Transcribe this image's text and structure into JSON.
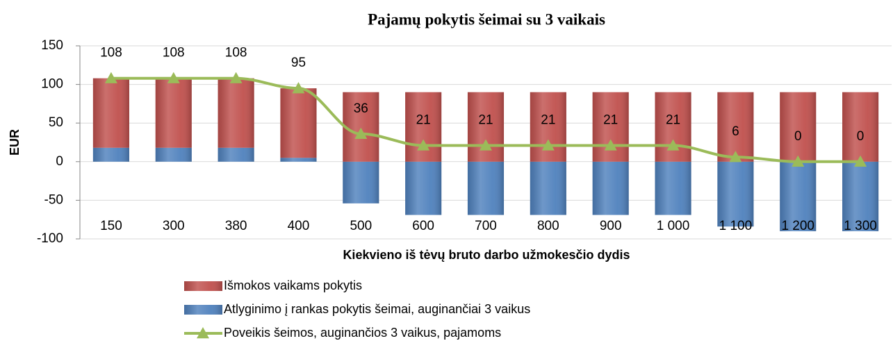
{
  "chart_data": {
    "type": "bar",
    "stacked": true,
    "title": "Pajamų pokytis šeimai su 3 vaikais",
    "x_label": "Kiekvieno iš tėvų bruto darbo užmokesčio dydis",
    "y_label": "EUR",
    "categories": [
      "150",
      "300",
      "380",
      "400",
      "500",
      "600",
      "700",
      "800",
      "900",
      "1 000",
      "1 100",
      "1 200",
      "1 300"
    ],
    "series": [
      {
        "name": "Išmokos vaikams pokytis",
        "color": "#c0504d",
        "values": [
          90,
          90,
          90,
          90,
          90,
          90,
          90,
          90,
          90,
          90,
          90,
          90,
          90
        ]
      },
      {
        "name": "Atlyginimo į rankas pokytis šeimai, auginančiai 3 vaikus",
        "color": "#4f81bd",
        "values": [
          18,
          18,
          18,
          5,
          -54,
          -69,
          -69,
          -69,
          -69,
          -69,
          -84,
          -90,
          -90
        ]
      },
      {
        "name": "Poveikis šeimos, auginančios  3 vaikus, pajamoms",
        "type": "line",
        "color": "#9bbb59",
        "values": [
          108,
          108,
          108,
          95,
          36,
          21,
          21,
          21,
          21,
          21,
          6,
          0,
          0
        ],
        "data_labels": true
      }
    ],
    "ylim": [
      -100,
      150
    ],
    "yticks": [
      -100,
      -50,
      0,
      50,
      100,
      150
    ],
    "grid": true
  }
}
